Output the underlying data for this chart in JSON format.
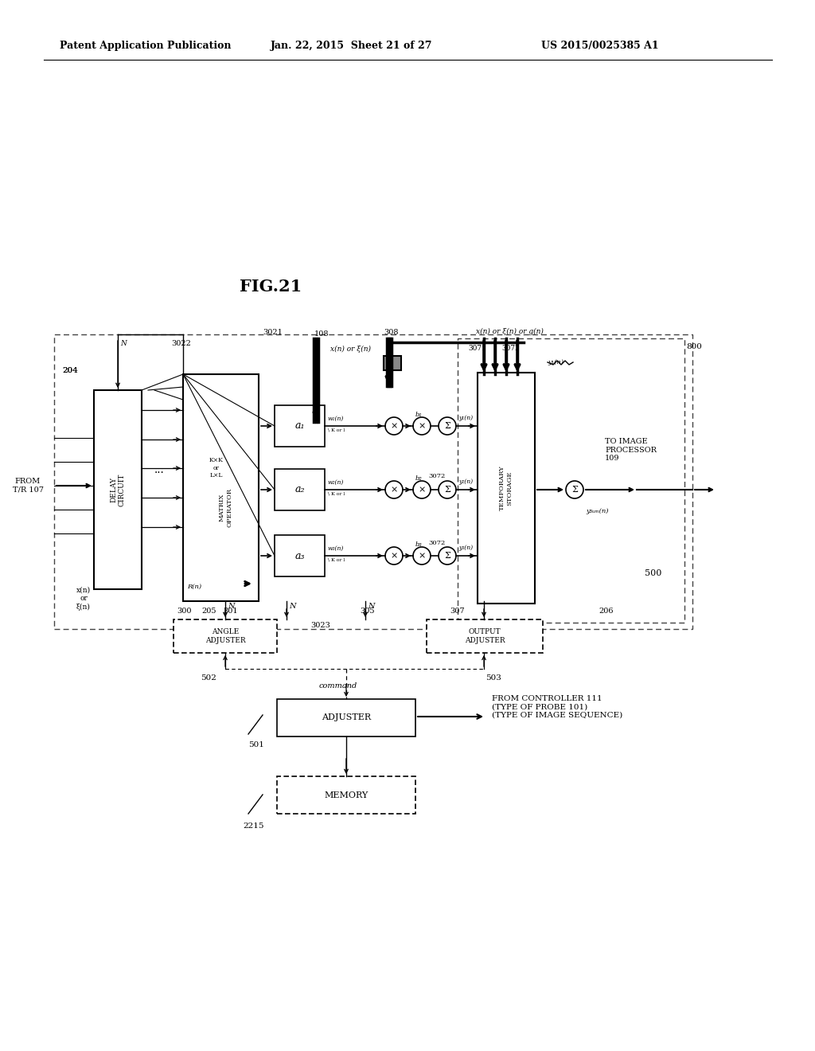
{
  "header_left": "Patent Application Publication",
  "header_mid": "Jan. 22, 2015  Sheet 21 of 27",
  "header_right": "US 2015/0025385 A1",
  "fig_title": "FIG.21",
  "bg_color": "#ffffff"
}
